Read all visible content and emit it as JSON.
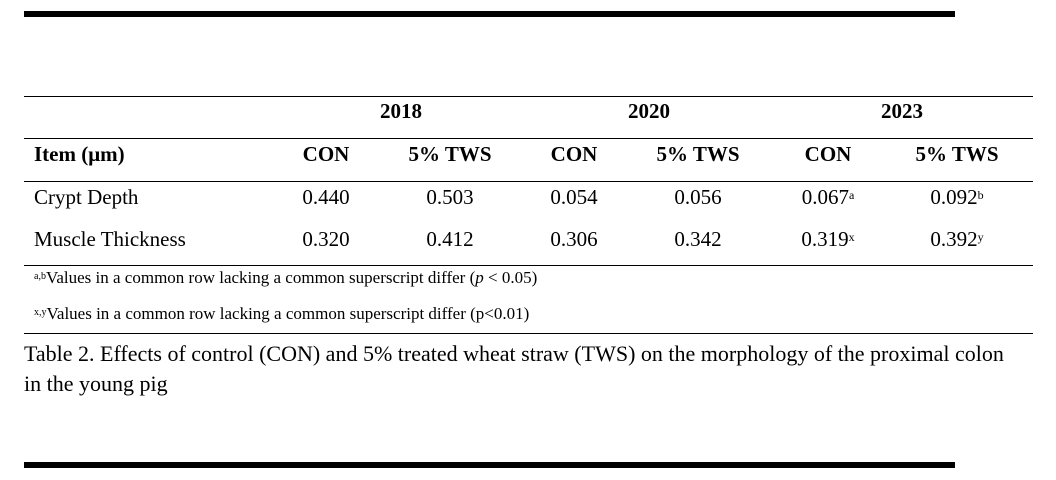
{
  "years": [
    "2018",
    "2020",
    "2023"
  ],
  "columns": {
    "item_header": "Item (μm)",
    "groups": [
      "CON",
      "5% TWS",
      "CON",
      "5% TWS",
      "CON",
      "5% TWS"
    ]
  },
  "rows": [
    {
      "label": "Crypt Depth",
      "values": [
        "0.440",
        "0.503",
        "0.054",
        "0.056",
        "0.067",
        "0.092"
      ],
      "sup": [
        "",
        "",
        "",
        "",
        "a",
        "b"
      ]
    },
    {
      "label": "Muscle Thickness",
      "values": [
        "0.320",
        "0.412",
        "0.306",
        "0.342",
        "0.319",
        "0.392"
      ],
      "sup": [
        "",
        "",
        "",
        "",
        "x",
        "y"
      ]
    }
  ],
  "footnotes": [
    {
      "sup": "a,b",
      "text_before": "Values in a common row lacking a common superscript differ (",
      "italic": "p",
      "text_after": " < 0.05)"
    },
    {
      "sup": "x,y",
      "text": "Values in a common row lacking a common superscript differ (p<0.01)"
    }
  ],
  "caption": "Table 2. Effects of control (CON) and 5% treated wheat straw (TWS) on the morphology of the proximal colon in the young pig"
}
